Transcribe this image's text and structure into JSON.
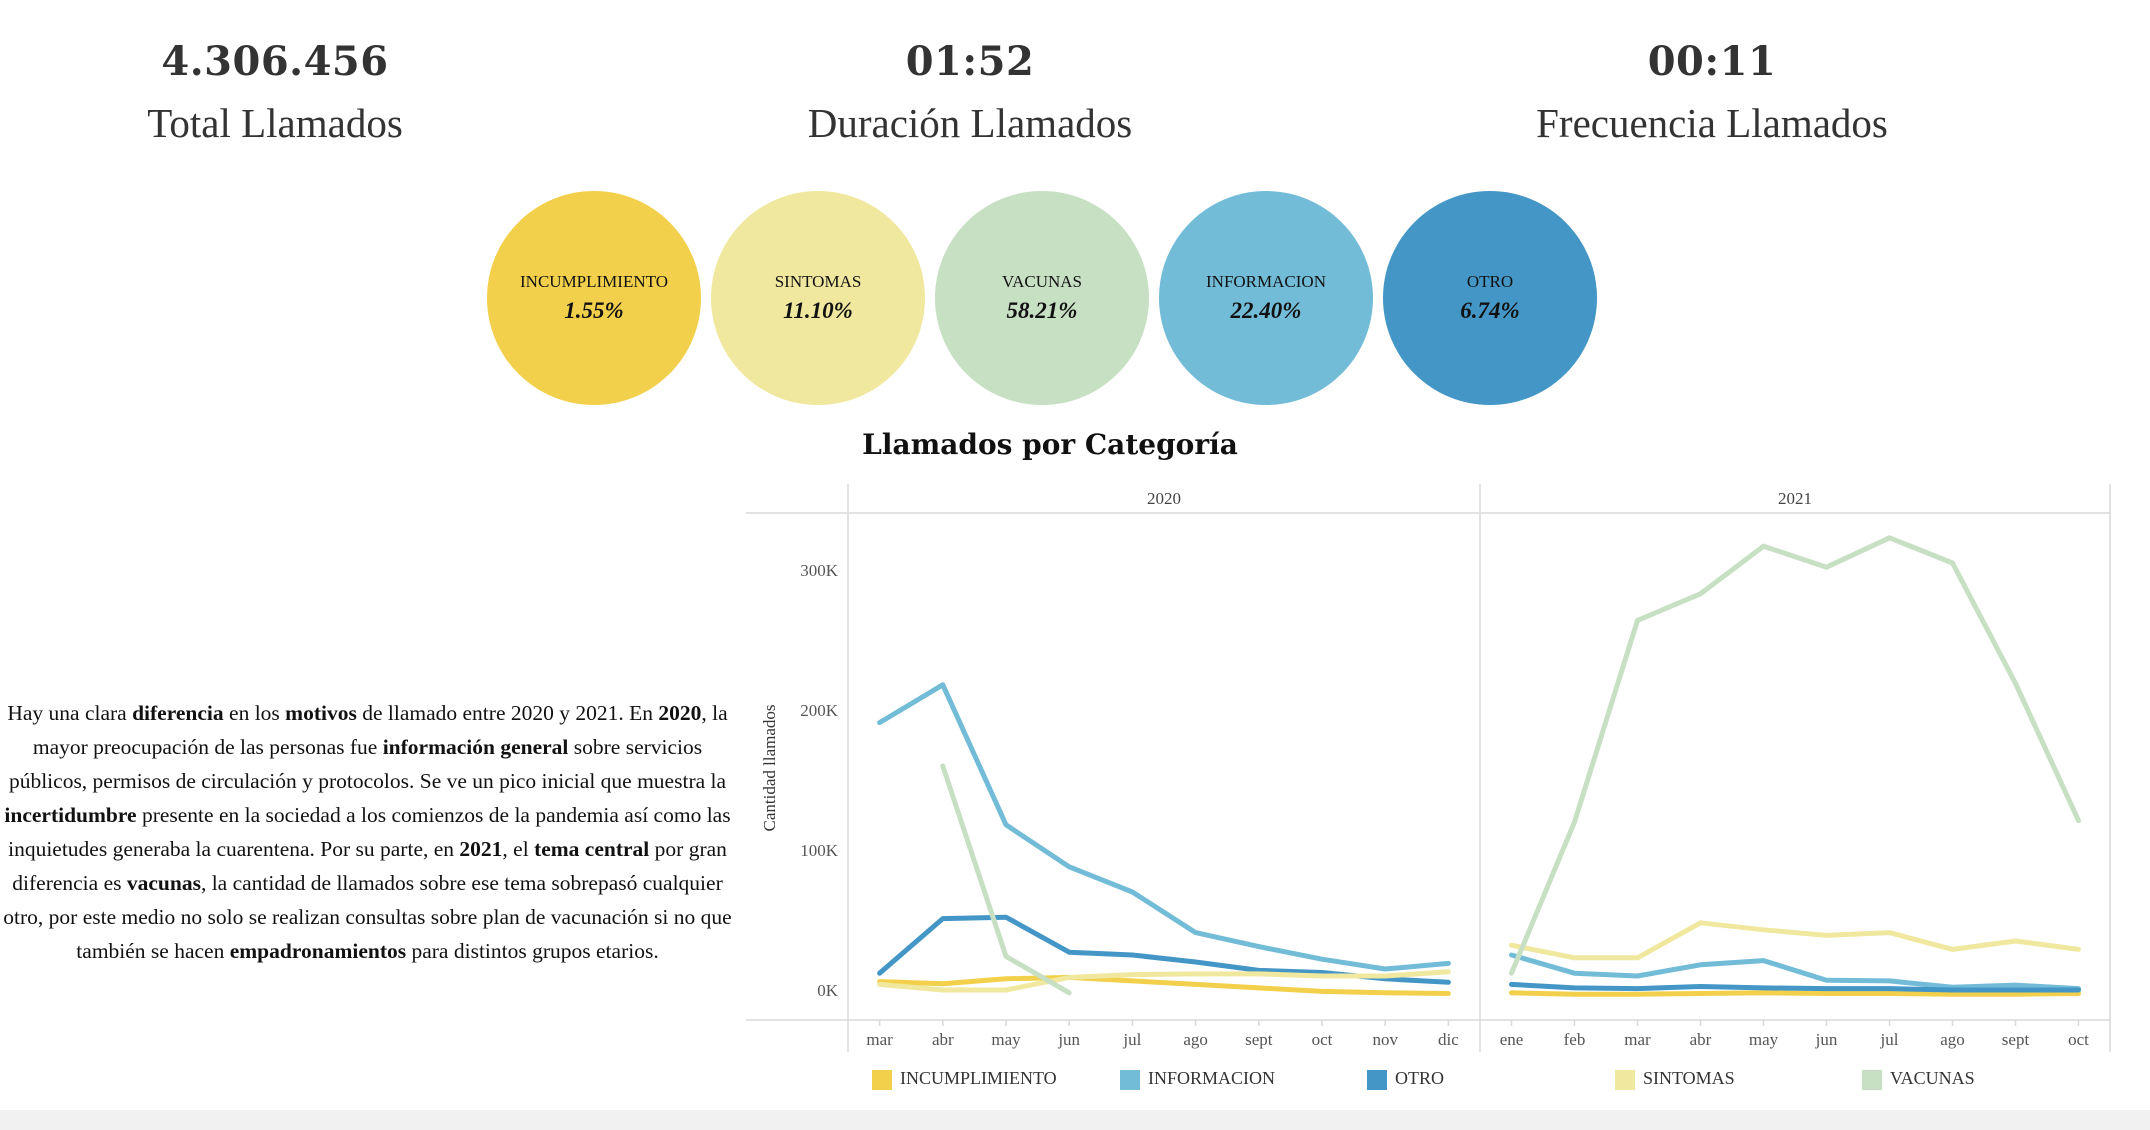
{
  "kpis": [
    {
      "value": "4.306.456",
      "label": "Total Llamados"
    },
    {
      "value": "01:52",
      "label": "Duración Llamados"
    },
    {
      "value": "00:11",
      "label": "Frecuencia Llamados"
    }
  ],
  "categories_summary": [
    {
      "name": "INCUMPLIMIENTO",
      "pct": "1.55%",
      "color": "#f2d04b"
    },
    {
      "name": "SINTOMAS",
      "pct": "11.10%",
      "color": "#f0e89e"
    },
    {
      "name": "VACUNAS",
      "pct": "58.21%",
      "color": "#c7dfc3"
    },
    {
      "name": "INFORMACION",
      "pct": "22.40%",
      "color": "#72bcd8"
    },
    {
      "name": "OTRO",
      "pct": "6.74%",
      "color": "#4496c6"
    }
  ],
  "description": [
    {
      "t": "Hay una clara ",
      "b": false
    },
    {
      "t": "diferencia",
      "b": true
    },
    {
      "t": " en los ",
      "b": false
    },
    {
      "t": "motivos",
      "b": true
    },
    {
      "t": " de llamado entre 2020 y 2021. En ",
      "b": false
    },
    {
      "t": "2020",
      "b": true
    },
    {
      "t": ", la mayor preocupación de las personas fue ",
      "b": false
    },
    {
      "t": "información general",
      "b": true
    },
    {
      "t": " sobre servicios públicos, permisos de circulación y protocolos. Se ve un pico inicial que muestra la ",
      "b": false
    },
    {
      "t": "incertidumbre",
      "b": true
    },
    {
      "t": " presente en la sociedad a los comienzos de la pandemia así como las inquietudes generaba la cuarentena. Por su parte, en ",
      "b": false
    },
    {
      "t": "2021",
      "b": true
    },
    {
      "t": ", el ",
      "b": false
    },
    {
      "t": "tema central",
      "b": true
    },
    {
      "t": " por gran diferencia es ",
      "b": false
    },
    {
      "t": "vacunas",
      "b": true
    },
    {
      "t": ", la cantidad de llamados sobre ese tema sobrepasó cualquier otro, por este medio no solo se realizan consultas sobre plan de vacunación si no que también se hacen ",
      "b": false
    },
    {
      "t": "empadronamientos",
      "b": true
    },
    {
      "t": " para distintos grupos etarios.",
      "b": false
    }
  ],
  "chart_data": {
    "type": "line",
    "title": "Llamados por Categoría",
    "ylabel": "Cantidad llamados",
    "ylim": [
      0,
      340000
    ],
    "yticks": [
      0,
      100000,
      200000,
      300000
    ],
    "ytick_labels": [
      "0K",
      "100K",
      "200K",
      "300K"
    ],
    "grid": false,
    "legend_position": "bottom",
    "panels": [
      {
        "label": "2020",
        "x": [
          "mar",
          "abr",
          "may",
          "jun",
          "jul",
          "ago",
          "sept",
          "oct",
          "nov",
          "dic"
        ],
        "series": [
          {
            "name": "INCUMPLIMIENTO",
            "color": "#f2d04b",
            "values": [
              6000,
              4500,
              8000,
              9000,
              6500,
              4000,
              1500,
              -1000,
              -2000,
              -2500
            ]
          },
          {
            "name": "INFORMACION",
            "color": "#72bcd8",
            "values": [
              191000,
              218000,
              118000,
              88000,
              70000,
              41000,
              31000,
              22000,
              15000,
              19000
            ]
          },
          {
            "name": "OTRO",
            "color": "#4496c6",
            "values": [
              12000,
              51000,
              52000,
              27000,
              25000,
              20000,
              14000,
              12500,
              8000,
              5500
            ]
          },
          {
            "name": "SINTOMAS",
            "color": "#f0e89e",
            "values": [
              4000,
              0,
              0,
              9000,
              11000,
              11500,
              11500,
              10000,
              10000,
              13000
            ]
          },
          {
            "name": "VACUNAS",
            "color": "#c7dfc3",
            "values": [
              null,
              160000,
              24000,
              -2000,
              null,
              null,
              null,
              null,
              null,
              null
            ]
          }
        ]
      },
      {
        "label": "2021",
        "x": [
          "ene",
          "feb",
          "mar",
          "abr",
          "may",
          "jun",
          "jul",
          "ago",
          "sept",
          "oct"
        ],
        "series": [
          {
            "name": "INCUMPLIMIENTO",
            "color": "#f2d04b",
            "values": [
              -2000,
              -3000,
              -3000,
              -2500,
              -2000,
              -2500,
              -2500,
              -3000,
              -3000,
              -2500
            ]
          },
          {
            "name": "INFORMACION",
            "color": "#72bcd8",
            "values": [
              25000,
              12000,
              10000,
              18000,
              21000,
              7000,
              6500,
              2000,
              3500,
              1000
            ]
          },
          {
            "name": "OTRO",
            "color": "#4496c6",
            "values": [
              4000,
              1500,
              1000,
              2500,
              1500,
              1000,
              1000,
              0,
              0,
              0
            ]
          },
          {
            "name": "SINTOMAS",
            "color": "#f0e89e",
            "values": [
              32000,
              23000,
              23000,
              48000,
              43000,
              39000,
              41000,
              29000,
              35000,
              29000
            ]
          },
          {
            "name": "VACUNAS",
            "color": "#c7dfc3",
            "values": [
              12000,
              120000,
              264000,
              283000,
              317000,
              302000,
              323000,
              305000,
              219000,
              121000
            ]
          }
        ]
      }
    ]
  }
}
